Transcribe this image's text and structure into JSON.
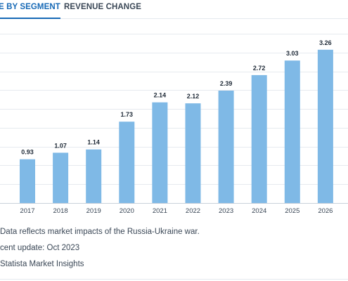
{
  "tabs": {
    "active_label": "E BY SEGMENT",
    "inactive_label": "REVENUE CHANGE"
  },
  "chart_data": {
    "type": "bar",
    "categories": [
      "2017",
      "2018",
      "2019",
      "2020",
      "2021",
      "2022",
      "2023",
      "2024",
      "2025",
      "2026"
    ],
    "values": [
      0.93,
      1.07,
      1.14,
      1.73,
      2.14,
      2.12,
      2.39,
      2.72,
      3.03,
      3.26
    ],
    "data_labels": [
      "0.93",
      "1.07",
      "1.14",
      "1.73",
      "2.14",
      "2.12",
      "2.39",
      "2.72",
      "3.03",
      "3.26"
    ],
    "ylim": [
      0,
      3.6
    ],
    "grid": true,
    "bar_color": "#7fb9e6"
  },
  "notes": {
    "line1": "Data reflects market impacts of the Russia-Ukraine war.",
    "line2": "cent update: Oct 2023",
    "line3": "Statista Market Insights"
  }
}
